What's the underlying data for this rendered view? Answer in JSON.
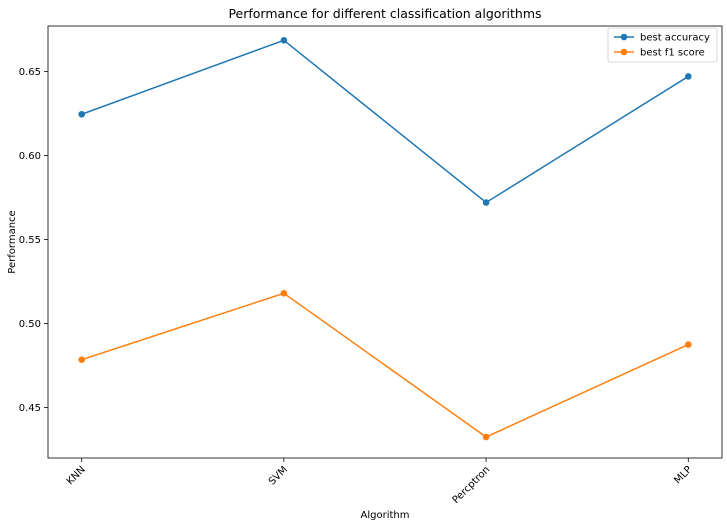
{
  "chart_data": {
    "type": "line",
    "title": "Performance for different classification algorithms",
    "xlabel": "Algorithm",
    "ylabel": "Performance",
    "categories": [
      "KNN",
      "SVM",
      "Percptron",
      "MLP"
    ],
    "ylim": [
      0.42,
      0.677
    ],
    "yticks": [
      0.45,
      0.5,
      0.55,
      0.6,
      0.65
    ],
    "ytick_labels": [
      "0.45",
      "0.50",
      "0.55",
      "0.60",
      "0.65"
    ],
    "grid": false,
    "legend_position": "top-right",
    "series": [
      {
        "name": "best accuracy",
        "color": "#1f77b4",
        "values": [
          0.6245,
          0.6685,
          0.572,
          0.647
        ]
      },
      {
        "name": "best f1 score",
        "color": "#ff7f0e",
        "values": [
          0.4785,
          0.518,
          0.4325,
          0.4875
        ]
      }
    ]
  }
}
